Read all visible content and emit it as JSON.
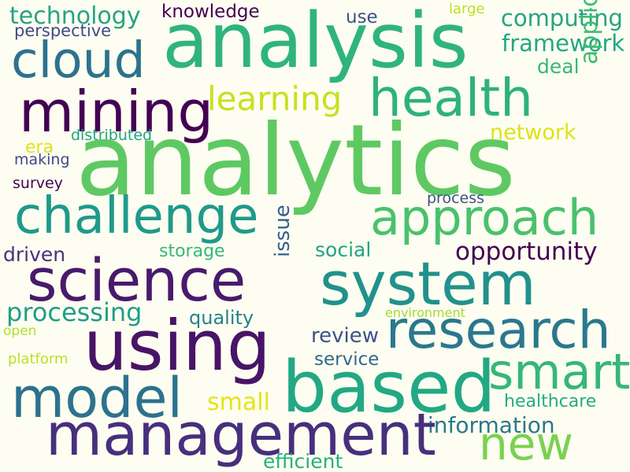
{
  "wordcloud": {
    "words": [
      {
        "text": "technology",
        "color": "#26a384"
      },
      {
        "text": "knowledge",
        "color": "#440154"
      },
      {
        "text": "use",
        "color": "#3b528b"
      },
      {
        "text": "large",
        "color": "#bddf26"
      },
      {
        "text": "computing",
        "color": "#26a384"
      },
      {
        "text": "perspective",
        "color": "#3e4a89"
      },
      {
        "text": "analysis",
        "color": "#2fb47c"
      },
      {
        "text": "framework",
        "color": "#22a884"
      },
      {
        "text": "cloud",
        "color": "#2c728e"
      },
      {
        "text": "deal",
        "color": "#35b779"
      },
      {
        "text": "mining",
        "color": "#440154"
      },
      {
        "text": "learning",
        "color": "#c8e020"
      },
      {
        "text": "health",
        "color": "#2db27d"
      },
      {
        "text": "application",
        "color": "#3fbc73"
      },
      {
        "text": "network",
        "color": "#dde318"
      },
      {
        "text": "distributed",
        "color": "#20a386"
      },
      {
        "text": "era",
        "color": "#dde318"
      },
      {
        "text": "making",
        "color": "#3e4a89"
      },
      {
        "text": "analytics",
        "color": "#5ec962"
      },
      {
        "text": "survey",
        "color": "#440154"
      },
      {
        "text": "process",
        "color": "#3b528b"
      },
      {
        "text": "challenge",
        "color": "#1f9a8a"
      },
      {
        "text": "approach",
        "color": "#4ac16d"
      },
      {
        "text": "driven",
        "color": "#46327e"
      },
      {
        "text": "storage",
        "color": "#35b779"
      },
      {
        "text": "social",
        "color": "#20a386"
      },
      {
        "text": "opportunity",
        "color": "#440154"
      },
      {
        "text": "science",
        "color": "#481a6c"
      },
      {
        "text": "system",
        "color": "#21918c"
      },
      {
        "text": "issue",
        "color": "#365c8d"
      },
      {
        "text": "processing",
        "color": "#1f9e89"
      },
      {
        "text": "quality",
        "color": "#26828e"
      },
      {
        "text": "environment",
        "color": "#a5db36"
      },
      {
        "text": "open",
        "color": "#b5de2b"
      },
      {
        "text": "research",
        "color": "#2a788e"
      },
      {
        "text": "review",
        "color": "#3b528b"
      },
      {
        "text": "using",
        "color": "#481467"
      },
      {
        "text": "platform",
        "color": "#bddf26"
      },
      {
        "text": "service",
        "color": "#31688e"
      },
      {
        "text": "smart",
        "color": "#35b779"
      },
      {
        "text": "based",
        "color": "#22a884"
      },
      {
        "text": "model",
        "color": "#2c728e"
      },
      {
        "text": "small",
        "color": "#e5e419"
      },
      {
        "text": "healthcare",
        "color": "#25ac82"
      },
      {
        "text": "information",
        "color": "#2a788e"
      },
      {
        "text": "management",
        "color": "#472f7d"
      },
      {
        "text": "new",
        "color": "#7ad151"
      },
      {
        "text": "efficient",
        "color": "#29af7f"
      }
    ]
  }
}
